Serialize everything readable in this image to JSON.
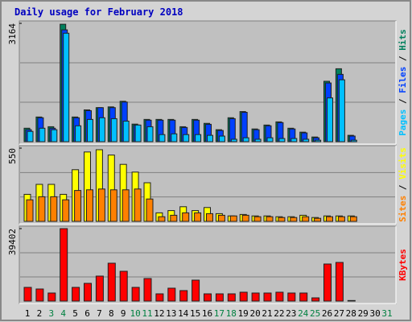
{
  "chart_data": [
    {
      "type": "bar",
      "title": "Daily usage for February 2018",
      "ylim": [
        0,
        3164
      ],
      "yticks": [
        3164
      ],
      "grid_divisions": 3,
      "legend_separator": " / ",
      "series": [
        {
          "name": "Pages",
          "color": "#00c0ff",
          "values": [
            275,
            360,
            320,
            2900,
            425,
            595,
            640,
            615,
            550,
            445,
            400,
            190,
            210,
            190,
            190,
            170,
            150,
            65,
            105,
            65,
            105,
            85,
            85,
            65,
            40,
            1170,
            1655,
            40,
            null,
            null,
            null
          ]
        },
        {
          "name": "Files",
          "color": "#0040ff",
          "values": [
            320,
            640,
            360,
            2990,
            640,
            830,
            910,
            910,
            1060,
            445,
            575,
            575,
            575,
            380,
            575,
            465,
            300,
            615,
            785,
            320,
            425,
            510,
            340,
            235,
            105,
            1570,
            1800,
            150,
            null,
            null,
            null
          ]
        },
        {
          "name": "Hits",
          "color": "#00805c",
          "values": [
            360,
            660,
            400,
            3140,
            660,
            850,
            910,
            930,
            1080,
            470,
            595,
            595,
            595,
            400,
            595,
            490,
            320,
            640,
            805,
            340,
            445,
            530,
            360,
            255,
            125,
            1615,
            1950,
            170,
            null,
            null,
            null
          ]
        }
      ]
    },
    {
      "type": "bar",
      "ylim": [
        0,
        550
      ],
      "yticks": [
        550
      ],
      "grid_divisions": 3,
      "legend_separator": " / ",
      "series": [
        {
          "name": "Sites",
          "color": "#ff8000",
          "values": [
            162,
            185,
            185,
            162,
            232,
            237,
            243,
            237,
            237,
            243,
            168,
            35,
            46,
            64,
            64,
            58,
            46,
            41,
            46,
            35,
            35,
            29,
            29,
            35,
            23,
            35,
            35,
            35,
            null,
            null,
            null
          ]
        },
        {
          "name": "Visits",
          "color": "#ffff00",
          "values": [
            203,
            278,
            278,
            203,
            388,
            521,
            538,
            498,
            428,
            370,
            290,
            64,
            81,
            110,
            81,
            104,
            58,
            41,
            52,
            41,
            41,
            35,
            35,
            46,
            29,
            41,
            41,
            41,
            null,
            null,
            null
          ]
        }
      ]
    },
    {
      "type": "bar",
      "ylim": [
        0,
        39402
      ],
      "yticks": [
        39402
      ],
      "grid_divisions": 3,
      "categories": [
        "1",
        "2",
        "3",
        "4",
        "5",
        "6",
        "7",
        "8",
        "9",
        "10",
        "11",
        "12",
        "13",
        "14",
        "15",
        "16",
        "17",
        "18",
        "19",
        "20",
        "21",
        "22",
        "23",
        "24",
        "25",
        "26",
        "27",
        "28",
        "29",
        "30",
        "31"
      ],
      "category_label_colors": [
        "#000000",
        "#000000",
        "#008040",
        "#008040",
        "#000000",
        "#000000",
        "#000000",
        "#000000",
        "#000000",
        "#008040",
        "#008040",
        "#000000",
        "#000000",
        "#000000",
        "#000000",
        "#000000",
        "#008040",
        "#008040",
        "#000000",
        "#000000",
        "#000000",
        "#000000",
        "#000000",
        "#008040",
        "#008040",
        "#000000",
        "#000000",
        "#000000",
        "#000000",
        "#000000",
        "#008040"
      ],
      "series": [
        {
          "name": "KBytes",
          "color": "#ff0000",
          "values": [
            7450,
            6570,
            4380,
            39402,
            7450,
            9640,
            13580,
            20590,
            16200,
            7450,
            12260,
            3940,
            7010,
            5700,
            11390,
            3940,
            3940,
            3940,
            4820,
            4380,
            4380,
            4820,
            4380,
            4380,
            1750,
            20150,
            21020,
            300,
            null,
            null,
            null
          ]
        }
      ]
    }
  ]
}
